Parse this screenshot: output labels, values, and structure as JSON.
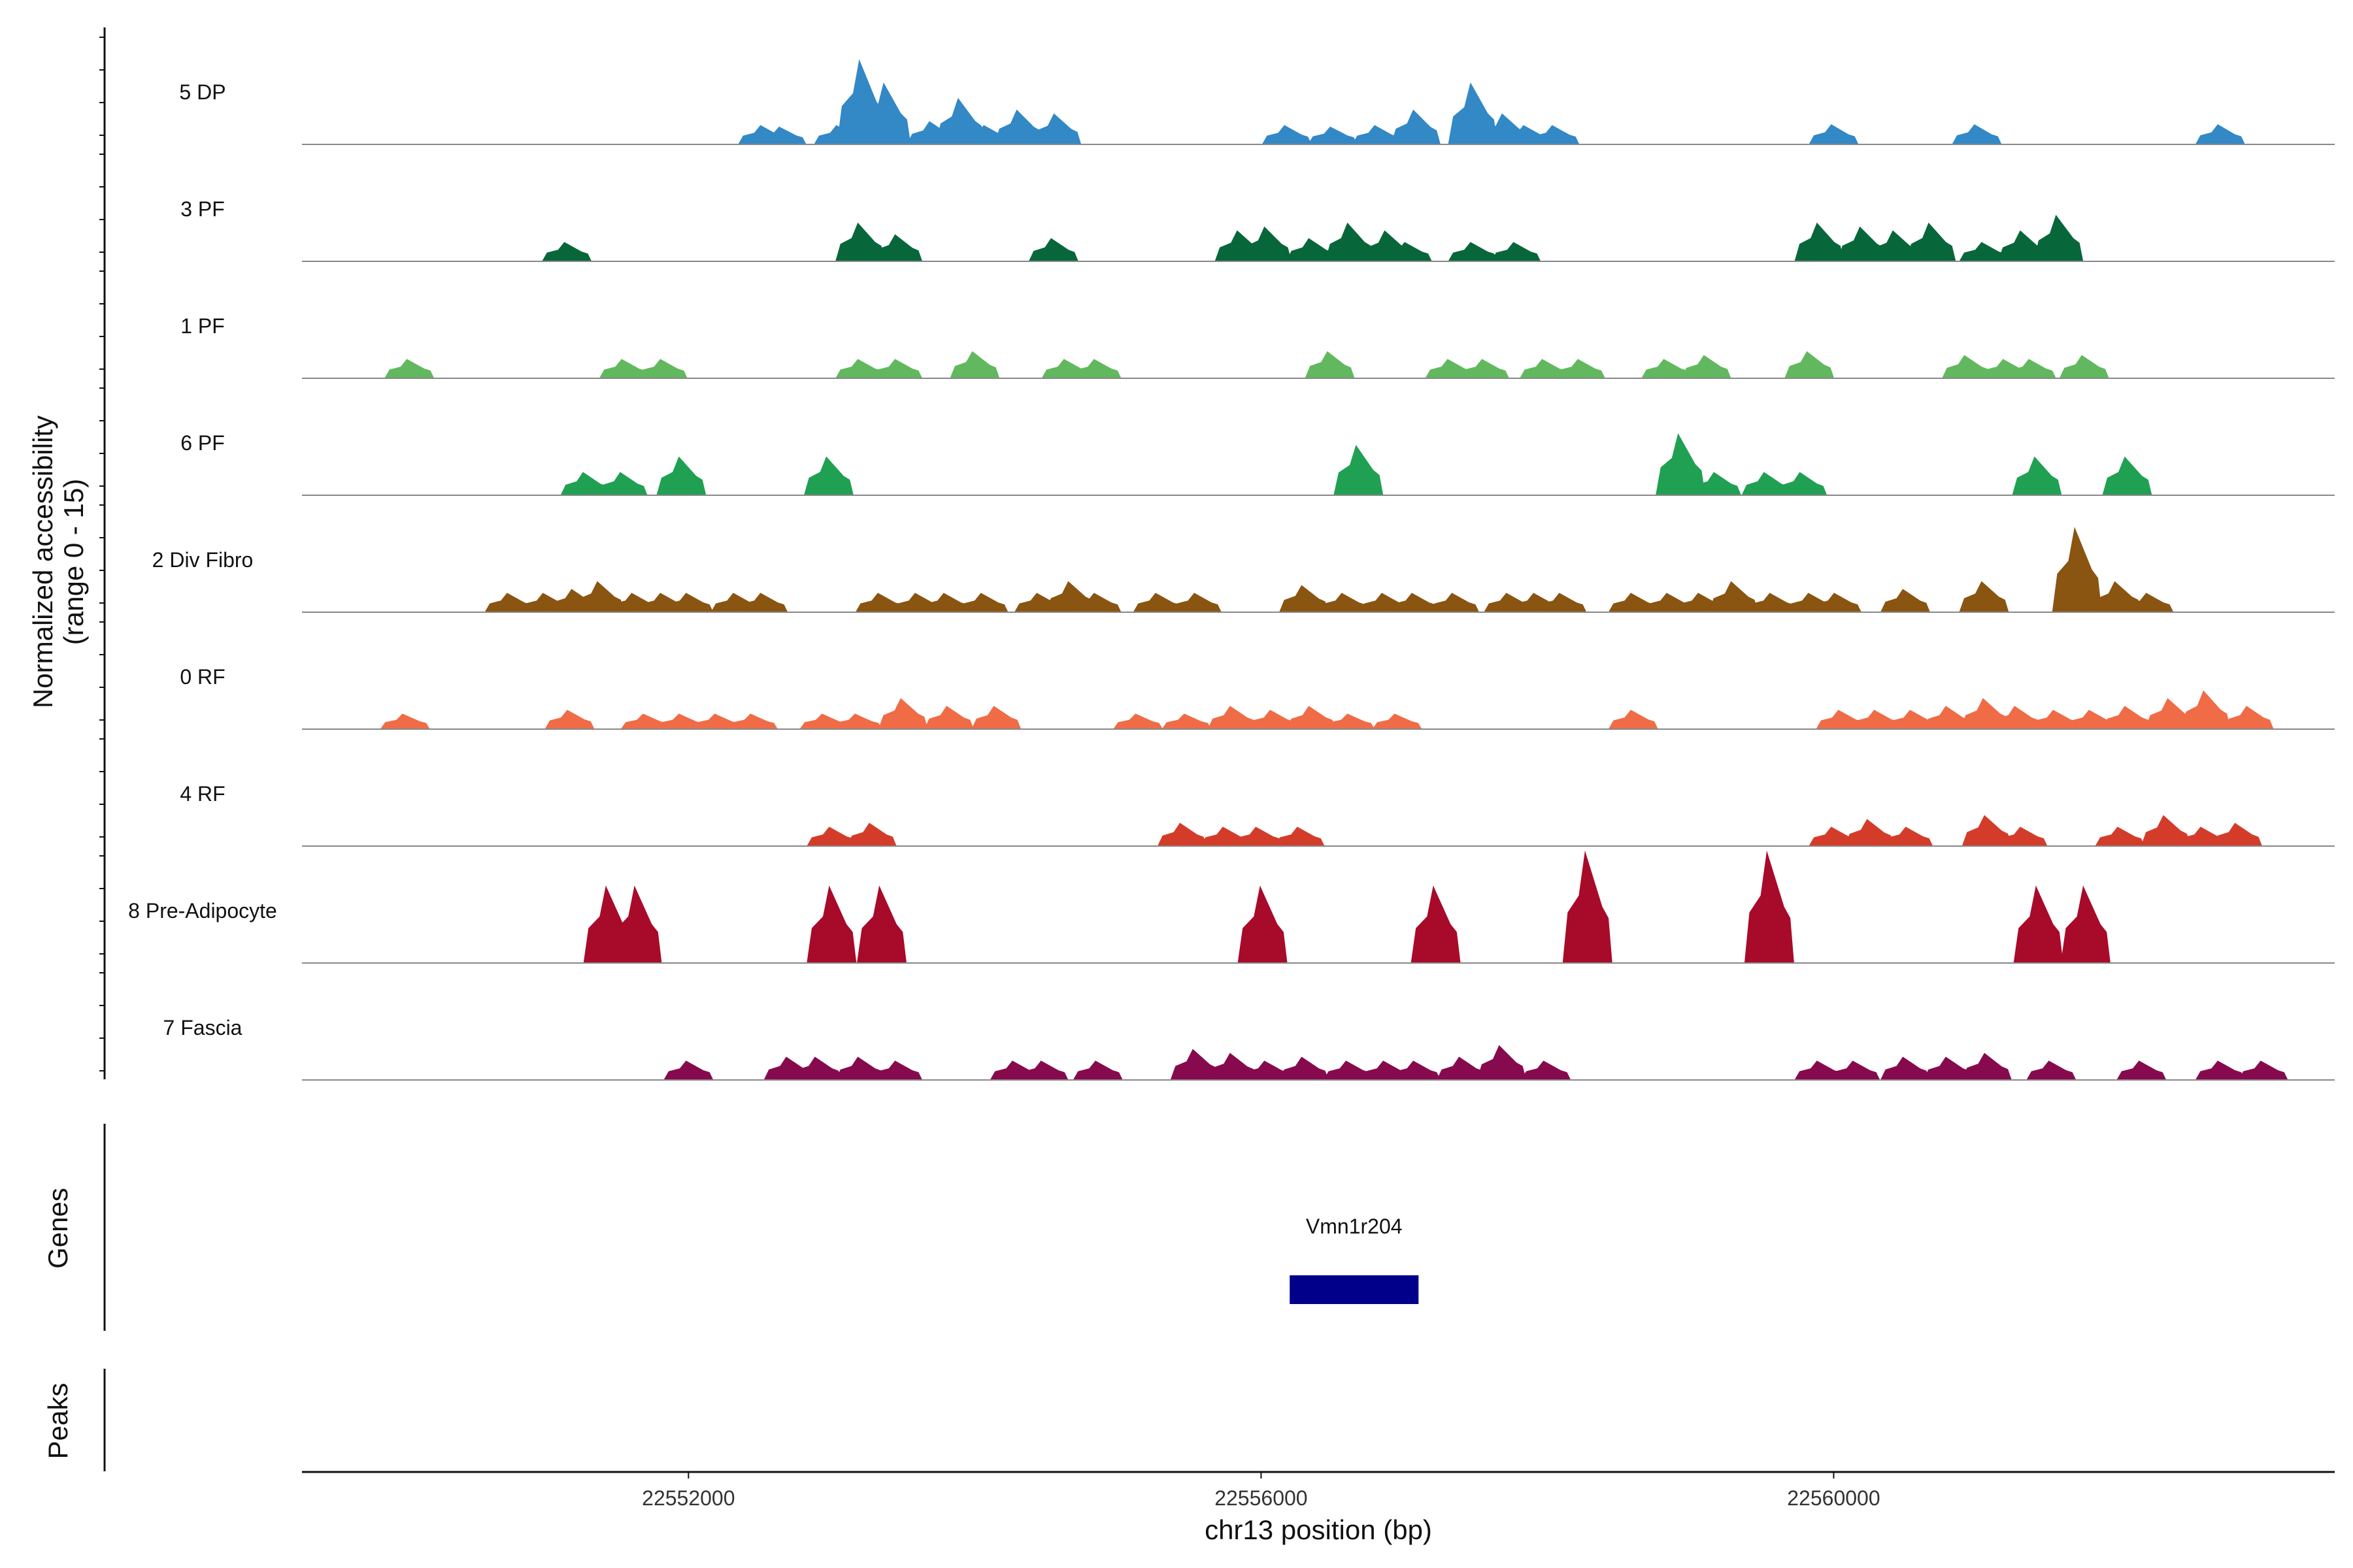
{
  "chart_data": {
    "type": "area",
    "ylabel": [
      "Normalized accessibility",
      "(range 0 - 15)"
    ],
    "xlabel": "chr13 position (bp)",
    "xlim": [
      22549300,
      22563500
    ],
    "ylim": [
      0,
      15
    ],
    "x_ticks": [
      22552000,
      22556000,
      22560000
    ],
    "x_tick_labels": [
      "22552000",
      "22556000",
      "22560000"
    ],
    "genes_label": "Genes",
    "peaks_label": "Peaks",
    "gene": {
      "name": "Vmn1r204",
      "start": 22556200,
      "end": 22557100
    },
    "series": [
      {
        "name": "5 DP",
        "color": "#3388C6",
        "peaks": [
          [
            22552520,
            2.5
          ],
          [
            22552650,
            2.3
          ],
          [
            22553050,
            2.5
          ],
          [
            22553210,
            11
          ],
          [
            22553380,
            8
          ],
          [
            22553700,
            3
          ],
          [
            22553900,
            6
          ],
          [
            22554080,
            2.5
          ],
          [
            22554310,
            4.5
          ],
          [
            22554570,
            4
          ],
          [
            22556180,
            2.5
          ],
          [
            22556500,
            2.3
          ],
          [
            22556810,
            2.5
          ],
          [
            22557080,
            4.5
          ],
          [
            22557480,
            8
          ],
          [
            22557700,
            4
          ],
          [
            22557850,
            2.5
          ],
          [
            22558050,
            2.5
          ],
          [
            22560000,
            2.6
          ],
          [
            22561000,
            2.6
          ],
          [
            22562700,
            2.6
          ]
        ]
      },
      {
        "name": "3 PF",
        "color": "#08673A",
        "peaks": [
          [
            22551150,
            2.5
          ],
          [
            22553200,
            5
          ],
          [
            22553460,
            3.5
          ],
          [
            22554550,
            3
          ],
          [
            22555850,
            4
          ],
          [
            22556040,
            4.5
          ],
          [
            22556350,
            3
          ],
          [
            22556620,
            5
          ],
          [
            22556880,
            4
          ],
          [
            22557020,
            2.5
          ],
          [
            22557480,
            2.5
          ],
          [
            22557780,
            2.5
          ],
          [
            22559900,
            5
          ],
          [
            22560200,
            4.5
          ],
          [
            22560430,
            4
          ],
          [
            22560680,
            5
          ],
          [
            22561050,
            2.5
          ],
          [
            22561320,
            4
          ],
          [
            22561570,
            6
          ]
        ]
      },
      {
        "name": "1 PF",
        "color": "#62B85E",
        "peaks": [
          [
            22550050,
            2.5
          ],
          [
            22551550,
            2.5
          ],
          [
            22551820,
            2.5
          ],
          [
            22553200,
            2.5
          ],
          [
            22553460,
            2.5
          ],
          [
            22554000,
            3.5
          ],
          [
            22554640,
            2.5
          ],
          [
            22554850,
            2.5
          ],
          [
            22556480,
            3.5
          ],
          [
            22557320,
            2.5
          ],
          [
            22557560,
            2.5
          ],
          [
            22557980,
            2.5
          ],
          [
            22558230,
            2.5
          ],
          [
            22558830,
            2.5
          ],
          [
            22559110,
            3
          ],
          [
            22559830,
            3.5
          ],
          [
            22560930,
            3
          ],
          [
            22561200,
            2.5
          ],
          [
            22561380,
            2.5
          ],
          [
            22561750,
            3
          ]
        ]
      },
      {
        "name": "6 PF",
        "color": "#20A052",
        "peaks": [
          [
            22551280,
            3
          ],
          [
            22551540,
            3
          ],
          [
            22551950,
            5
          ],
          [
            22552980,
            5
          ],
          [
            22556680,
            6.5
          ],
          [
            22558930,
            8
          ],
          [
            22559180,
            3
          ],
          [
            22559530,
            3
          ],
          [
            22559780,
            3
          ],
          [
            22561420,
            5
          ],
          [
            22562050,
            5
          ]
        ]
      },
      {
        "name": "2 Div Fibro",
        "color": "#8A5411",
        "peaks": [
          [
            22550750,
            2.5
          ],
          [
            22551000,
            2.5
          ],
          [
            22551200,
            3
          ],
          [
            22551380,
            4
          ],
          [
            22551620,
            2.5
          ],
          [
            22551820,
            2.5
          ],
          [
            22552000,
            2.5
          ],
          [
            22552330,
            2.5
          ],
          [
            22552520,
            2.5
          ],
          [
            22553340,
            2.5
          ],
          [
            22553600,
            2.5
          ],
          [
            22553800,
            2.5
          ],
          [
            22554060,
            2.5
          ],
          [
            22554450,
            2.5
          ],
          [
            22554670,
            4
          ],
          [
            22554850,
            2.5
          ],
          [
            22555280,
            2.5
          ],
          [
            22555550,
            2.5
          ],
          [
            22556300,
            3.5
          ],
          [
            22556580,
            2.5
          ],
          [
            22556860,
            2.5
          ],
          [
            22557070,
            2.5
          ],
          [
            22557350,
            2.5
          ],
          [
            22557730,
            2.5
          ],
          [
            22557920,
            2.5
          ],
          [
            22558100,
            2.5
          ],
          [
            22558600,
            2.5
          ],
          [
            22558850,
            2.5
          ],
          [
            22559070,
            2.5
          ],
          [
            22559300,
            4
          ],
          [
            22559570,
            2.5
          ],
          [
            22559840,
            2.5
          ],
          [
            22560020,
            2.5
          ],
          [
            22560500,
            3
          ],
          [
            22561050,
            4
          ],
          [
            22561700,
            11
          ],
          [
            22561980,
            4
          ],
          [
            22562200,
            2.5
          ]
        ]
      },
      {
        "name": "0 RF",
        "color": "#EF6C47",
        "peaks": [
          [
            22550020,
            2
          ],
          [
            22551170,
            2.5
          ],
          [
            22551700,
            2
          ],
          [
            22551950,
            2
          ],
          [
            22552200,
            2
          ],
          [
            22552450,
            2
          ],
          [
            22552950,
            2
          ],
          [
            22553180,
            2
          ],
          [
            22553500,
            4
          ],
          [
            22553820,
            3
          ],
          [
            22554150,
            3
          ],
          [
            22555140,
            2
          ],
          [
            22555480,
            2
          ],
          [
            22555800,
            3
          ],
          [
            22556080,
            2.5
          ],
          [
            22556350,
            3
          ],
          [
            22556620,
            2
          ],
          [
            22556950,
            2
          ],
          [
            22558600,
            2.5
          ],
          [
            22560050,
            2.5
          ],
          [
            22560300,
            2.5
          ],
          [
            22560550,
            2.5
          ],
          [
            22560800,
            3
          ],
          [
            22561060,
            4
          ],
          [
            22561280,
            3
          ],
          [
            22561550,
            2.5
          ],
          [
            22561800,
            2.5
          ],
          [
            22562050,
            3
          ],
          [
            22562350,
            4
          ],
          [
            22562600,
            5
          ],
          [
            22562900,
            3
          ]
        ]
      },
      {
        "name": "4 RF",
        "color": "#D43C2A",
        "peaks": [
          [
            22553000,
            2.5
          ],
          [
            22553280,
            3
          ],
          [
            22555450,
            3
          ],
          [
            22555750,
            2.5
          ],
          [
            22555980,
            2.5
          ],
          [
            22556270,
            2.5
          ],
          [
            22560000,
            2.5
          ],
          [
            22560250,
            3.5
          ],
          [
            22560520,
            2.5
          ],
          [
            22561070,
            4
          ],
          [
            22561320,
            2.5
          ],
          [
            22562000,
            2.5
          ],
          [
            22562320,
            4
          ],
          [
            22562580,
            2.5
          ],
          [
            22562820,
            3
          ]
        ]
      },
      {
        "name": "8 Pre-Adipocyte",
        "color": "#A80A2A",
        "peaks": [
          [
            22551440,
            10
          ],
          [
            22551640,
            10
          ],
          [
            22553000,
            10
          ],
          [
            22553350,
            10
          ],
          [
            22556010,
            10
          ],
          [
            22557220,
            10
          ],
          [
            22558280,
            14.5
          ],
          [
            22559550,
            14.5
          ],
          [
            22561430,
            10
          ],
          [
            22561760,
            10
          ]
        ]
      },
      {
        "name": "7 Fascia",
        "color": "#870A4E",
        "peaks": [
          [
            22552000,
            2.5
          ],
          [
            22552700,
            3
          ],
          [
            22552900,
            3
          ],
          [
            22553200,
            3
          ],
          [
            22553460,
            2.5
          ],
          [
            22554280,
            2.5
          ],
          [
            22554480,
            2.5
          ],
          [
            22554860,
            2.5
          ],
          [
            22555540,
            4
          ],
          [
            22555800,
            3.5
          ],
          [
            22556040,
            2.5
          ],
          [
            22556300,
            3
          ],
          [
            22556610,
            2.5
          ],
          [
            22556870,
            2.5
          ],
          [
            22557080,
            2.5
          ],
          [
            22557400,
            3
          ],
          [
            22557680,
            4.5
          ],
          [
            22557990,
            2.5
          ],
          [
            22559900,
            2.5
          ],
          [
            22560150,
            2.5
          ],
          [
            22560500,
            3
          ],
          [
            22560800,
            3
          ],
          [
            22561070,
            3.5
          ],
          [
            22561520,
            2.5
          ],
          [
            22562150,
            2.5
          ],
          [
            22562700,
            2.5
          ],
          [
            22563000,
            2.5
          ]
        ]
      }
    ]
  }
}
